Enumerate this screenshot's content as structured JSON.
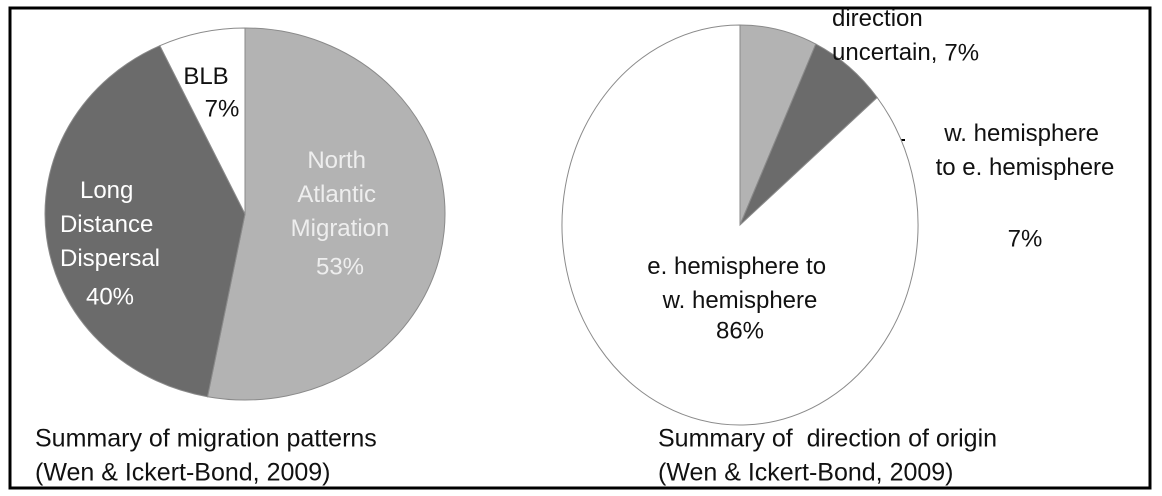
{
  "chart_data": [
    {
      "type": "pie",
      "title": "Summary of migration patterns",
      "subtitle": "(Wen & Ickert-Bond, 2009)",
      "categories": [
        "North Atlantic Migration",
        "Long Distance Dispersal",
        "BLB"
      ],
      "values": [
        53,
        40,
        7
      ],
      "value_labels": [
        "53%",
        "40%",
        "7%"
      ],
      "colors": [
        "#b3b3b3",
        "#6b6b6b",
        "#ffffff"
      ]
    },
    {
      "type": "pie",
      "title": "Summary of  direction of origin",
      "subtitle": "(Wen & Ickert-Bond, 2009)",
      "categories": [
        "direction uncertain,",
        "w. hemisphere to e. hemisphere",
        "e. hemisphere to w. hemisphere"
      ],
      "values": [
        7,
        7,
        86
      ],
      "value_labels": [
        "7%",
        "7%",
        "86%"
      ],
      "colors": [
        "#b3b3b3",
        "#6b6b6b",
        "#ffffff"
      ]
    }
  ]
}
